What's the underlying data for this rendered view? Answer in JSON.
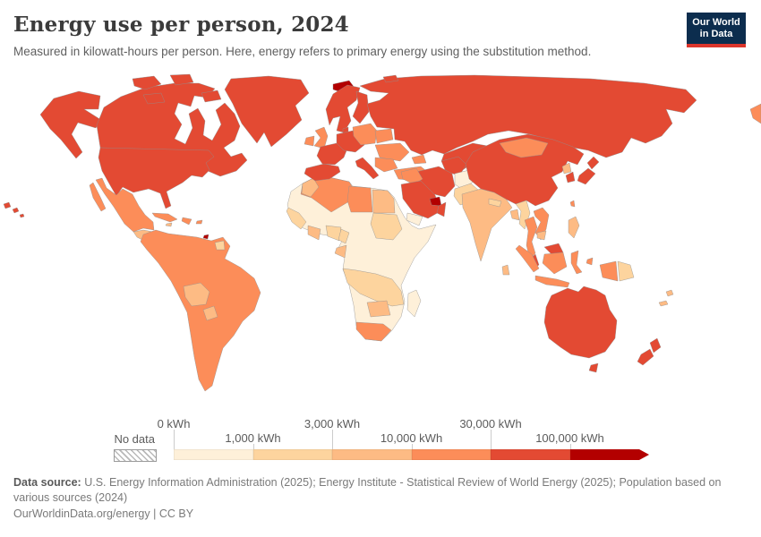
{
  "header": {
    "title": "Energy use per person, 2024",
    "subtitle": "Measured in kilowatt-hours per person. Here, energy refers to primary energy using the substitution method."
  },
  "logo": {
    "line1": "Our World",
    "line2": "in Data",
    "bg_color": "#0c2d4e",
    "accent_color": "#dc352b"
  },
  "chart_data": {
    "type": "choropleth-map",
    "title": "Energy use per person, 2024",
    "unit": "kilowatt-hours per person",
    "year": "2024",
    "projection": "world",
    "color_scale": {
      "no_data_label": "No data",
      "tick_labels": [
        "0 kWh",
        "1,000 kWh",
        "3,000 kWh",
        "10,000 kWh",
        "30,000 kWh",
        "100,000 kWh"
      ],
      "bin_colors": [
        "#fef0d9",
        "#fdd49e",
        "#fdbb84",
        "#fc8d59",
        "#e34a33",
        "#b30000"
      ],
      "scale_type": "log"
    },
    "regions": {
      "alaska": 4,
      "canada": 4,
      "arctic-islands": 4,
      "greenland": 4,
      "usa": 4,
      "hawaii": 4,
      "mexico": 3,
      "central-america": 2,
      "cuba": 3,
      "jamaica": 2,
      "hispaniola": 3,
      "puerto-rico": 3,
      "trinidad": 5,
      "south-america": 3,
      "bolivia": 2,
      "paraguay": 2,
      "guyana": 1,
      "africa": 0,
      "north-africa": 3,
      "morocco": 2,
      "libya": 3,
      "egypt": 2,
      "sudan": 1,
      "senegal-guinea": 1,
      "ivory-ghana": 2,
      "nigeria": 1,
      "cameroon": 1,
      "gabon": 2,
      "east-africa": 1,
      "zimbabwe-botswana": 2,
      "south-africa": 3,
      "madagascar": 0,
      "iceland": 5,
      "uk": 3,
      "ireland": 3,
      "norway-sweden": 4,
      "finland": 4,
      "denmark": 4,
      "iberia": 4,
      "france": 4,
      "central-europe": 4,
      "italy": 4,
      "poland-baltics": 3,
      "belarus": 3,
      "ukraine": 3,
      "balkans": 3,
      "turkey": 3,
      "russia": 4,
      "svalbard": 4,
      "chukotka": 3,
      "kazakhstan": 4,
      "central-asia": 4,
      "caucasus": 3,
      "iran": 4,
      "iraq-syria": 3,
      "saudi-arabia": 4,
      "uae-qatar": 5,
      "oman": 4,
      "yemen": 0,
      "afghanistan": 0,
      "pakistan": 1,
      "india": 2,
      "nepal": 1,
      "bangladesh": 2,
      "sri-lanka": 2,
      "myanmar": 1,
      "thailand": 3,
      "laos-vietnam": 3,
      "cambodia": 2,
      "malaysia": 4,
      "china": 4,
      "mongolia": 3,
      "north-korea": 2,
      "south-korea": 4,
      "japan": 4,
      "taiwan": 3,
      "philippines": 2,
      "sumatra": 3,
      "java": 3,
      "borneo-my": 4,
      "borneo-id": 3,
      "sulawesi": 3,
      "moluccas": 3,
      "new-guinea-west": 3,
      "png": 1,
      "australia": 4,
      "tasmania": 4,
      "new-zealand": 4,
      "pacific-islands": 2
    }
  },
  "footer": {
    "source_label": "Data source:",
    "source_text": "U.S. Energy Information Administration (2025); Energy Institute - Statistical Review of World Energy (2025); Population based on various sources (2024)",
    "url": "OurWorldinData.org/energy",
    "divider": "|",
    "license": "CC BY"
  }
}
